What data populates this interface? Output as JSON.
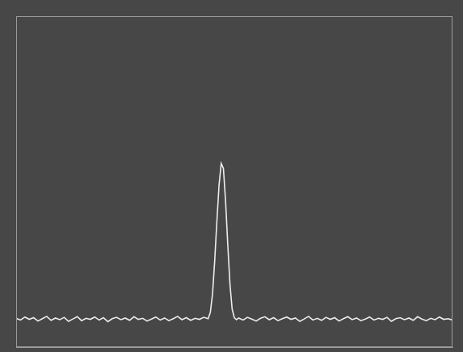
{
  "chart_data": {
    "type": "line",
    "color": "#ececec",
    "grid": false,
    "tick_labels": false,
    "xlim": [
      0,
      100
    ],
    "ylim": [
      0,
      100
    ],
    "x": [
      0,
      1,
      2,
      3,
      4,
      5,
      6,
      7,
      8,
      9,
      10,
      11,
      12,
      13,
      14,
      15,
      16,
      17,
      18,
      19,
      20,
      21,
      22,
      23,
      24,
      25,
      26,
      27,
      28,
      29,
      30,
      31,
      32,
      33,
      34,
      35,
      36,
      37,
      38,
      39,
      40,
      41,
      42,
      43,
      44,
      44.5,
      45,
      45.5,
      46,
      46.5,
      47,
      47.5,
      48,
      48.5,
      49,
      49.5,
      50,
      50.5,
      51,
      52,
      53,
      54,
      55,
      56,
      57,
      58,
      59,
      60,
      61,
      62,
      63,
      64,
      65,
      66,
      67,
      68,
      69,
      70,
      71,
      72,
      73,
      74,
      75,
      76,
      77,
      78,
      79,
      80,
      81,
      82,
      83,
      84,
      85,
      86,
      87,
      88,
      89,
      90,
      91,
      92,
      93,
      94,
      95,
      96,
      97,
      98,
      99,
      100
    ],
    "values": [
      8.7,
      8.2,
      9.1,
      8.4,
      8.9,
      7.9,
      8.6,
      9.3,
      8.1,
      8.8,
      8.3,
      9.0,
      7.8,
      8.5,
      9.2,
      8.0,
      8.7,
      8.4,
      9.1,
      8.2,
      8.9,
      7.7,
      8.6,
      9.0,
      8.3,
      8.8,
      8.1,
      9.2,
      8.4,
      8.7,
      7.9,
      8.5,
      9.1,
      8.2,
      8.8,
      8.0,
      8.6,
      9.3,
      8.3,
      8.9,
      8.1,
      8.7,
      8.4,
      9.0,
      8.6,
      10.5,
      16,
      26,
      38,
      49,
      55.5,
      54,
      44,
      31,
      19,
      11.5,
      8.9,
      8.3,
      8.8,
      8.2,
      9.0,
      8.5,
      7.9,
      8.7,
      9.2,
      8.3,
      8.9,
      8.0,
      8.6,
      9.1,
      8.4,
      8.8,
      7.8,
      8.5,
      9.3,
      8.2,
      8.7,
      8.1,
      9.0,
      8.4,
      8.9,
      7.9,
      8.6,
      9.2,
      8.3,
      8.8,
      8.0,
      8.5,
      9.1,
      8.2,
      8.7,
      8.4,
      9.0,
      7.8,
      8.6,
      8.9,
      8.3,
      8.8,
      8.1,
      9.2,
      8.5,
      8.0,
      8.7,
      8.3,
      9.1,
      8.4,
      8.6,
      8.2
    ]
  }
}
